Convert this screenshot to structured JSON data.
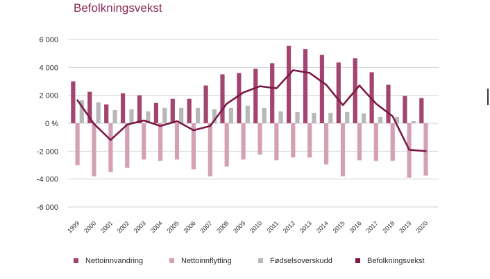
{
  "chart_data": {
    "type": "bar",
    "title": "Befolkningsvekst",
    "xlabel": "",
    "ylabel": "",
    "ylim": [
      -6000,
      6000
    ],
    "yticks": [
      6000,
      4000,
      2000,
      0,
      -2000,
      -4000,
      -6000
    ],
    "ytick_labels": [
      "6 000",
      "4 000",
      "2 000",
      "0 %",
      "-2 000",
      "-4 000",
      "-6 000"
    ],
    "grid": true,
    "legend_position": "bottom",
    "categories": [
      "1999",
      "2000",
      "2001",
      "2002",
      "2003",
      "2004",
      "2005",
      "2006",
      "2007",
      "2008",
      "2009",
      "2010",
      "2011",
      "2012",
      "2013",
      "2014",
      "2015",
      "2016",
      "2017",
      "2018",
      "2019",
      "2020"
    ],
    "series": [
      {
        "name": "Nettoinnvandring",
        "type": "bar",
        "color": "#a3456e",
        "values": [
          3000,
          2250,
          1350,
          2150,
          2000,
          1450,
          1750,
          1750,
          2700,
          3500,
          3600,
          3900,
          4300,
          5550,
          5300,
          4900,
          4350,
          4650,
          3650,
          2750,
          1950,
          1800
        ]
      },
      {
        "name": "Nettoinnflytting",
        "type": "bar",
        "color": "#d4a0b5",
        "values": [
          -3000,
          -3800,
          -3500,
          -3200,
          -2600,
          -2700,
          -2600,
          -3300,
          -3800,
          -3100,
          -2600,
          -2250,
          -2650,
          -2450,
          -2450,
          -2950,
          -3800,
          -2650,
          -2700,
          -2700,
          -3900,
          -3750
        ]
      },
      {
        "name": "Fødselsoverskudd",
        "type": "bar",
        "color": "#b8b8b8",
        "values": [
          1650,
          1500,
          950,
          1000,
          850,
          1100,
          1100,
          1100,
          1000,
          1100,
          1250,
          1100,
          850,
          800,
          750,
          750,
          800,
          700,
          450,
          450,
          150,
          0
        ]
      },
      {
        "name": "Befolkningsvekst",
        "type": "line",
        "color": "#7a1a46",
        "values": [
          1650,
          -50,
          -1200,
          -100,
          200,
          -200,
          150,
          -500,
          -200,
          1400,
          2200,
          2650,
          2500,
          3800,
          3600,
          2750,
          1300,
          2700,
          1400,
          500,
          -1900,
          -2000
        ]
      }
    ]
  }
}
